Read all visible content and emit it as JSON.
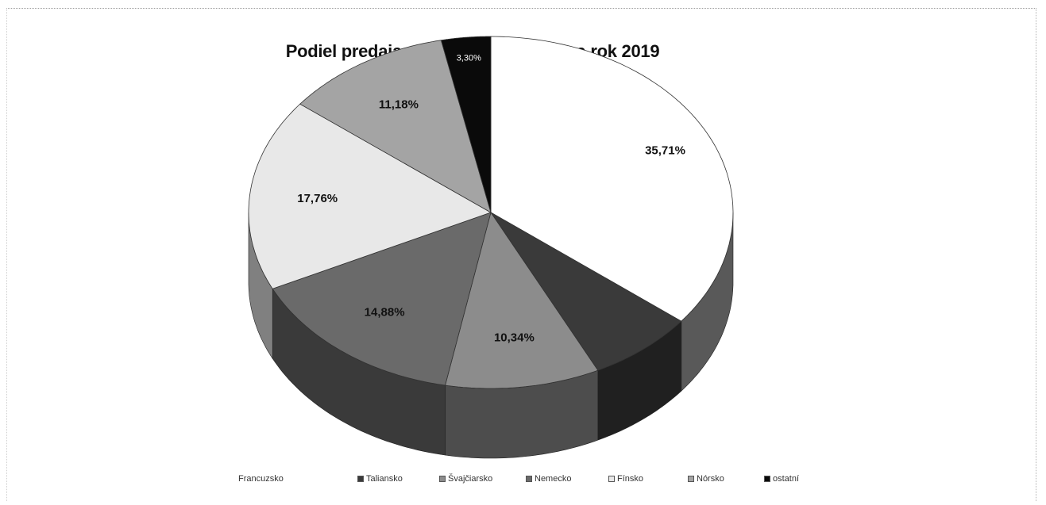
{
  "chart_data": {
    "type": "pie",
    "title": "Podiel predaja v EUR podľa štátov za rok 2019",
    "categories": [
      "Francuzsko",
      "Taliansko",
      "Švajčiarsko",
      "Nemecko",
      "Fínsko",
      "Nórsko",
      "ostatní"
    ],
    "values": [
      35.71,
      7.13,
      10.34,
      14.88,
      17.76,
      11.18,
      3.3
    ],
    "data_labels": [
      "35,71%",
      "",
      "10,34%",
      "14,88%",
      "17,76%",
      "11,18%",
      "3,30%"
    ],
    "colors": [
      "#ffffff",
      "#3a3a3a",
      "#8c8c8c",
      "#6a6a6a",
      "#e8e8e8",
      "#a4a4a4",
      "#0a0a0a"
    ],
    "legend_position": "bottom",
    "style": "3d-exploded"
  }
}
